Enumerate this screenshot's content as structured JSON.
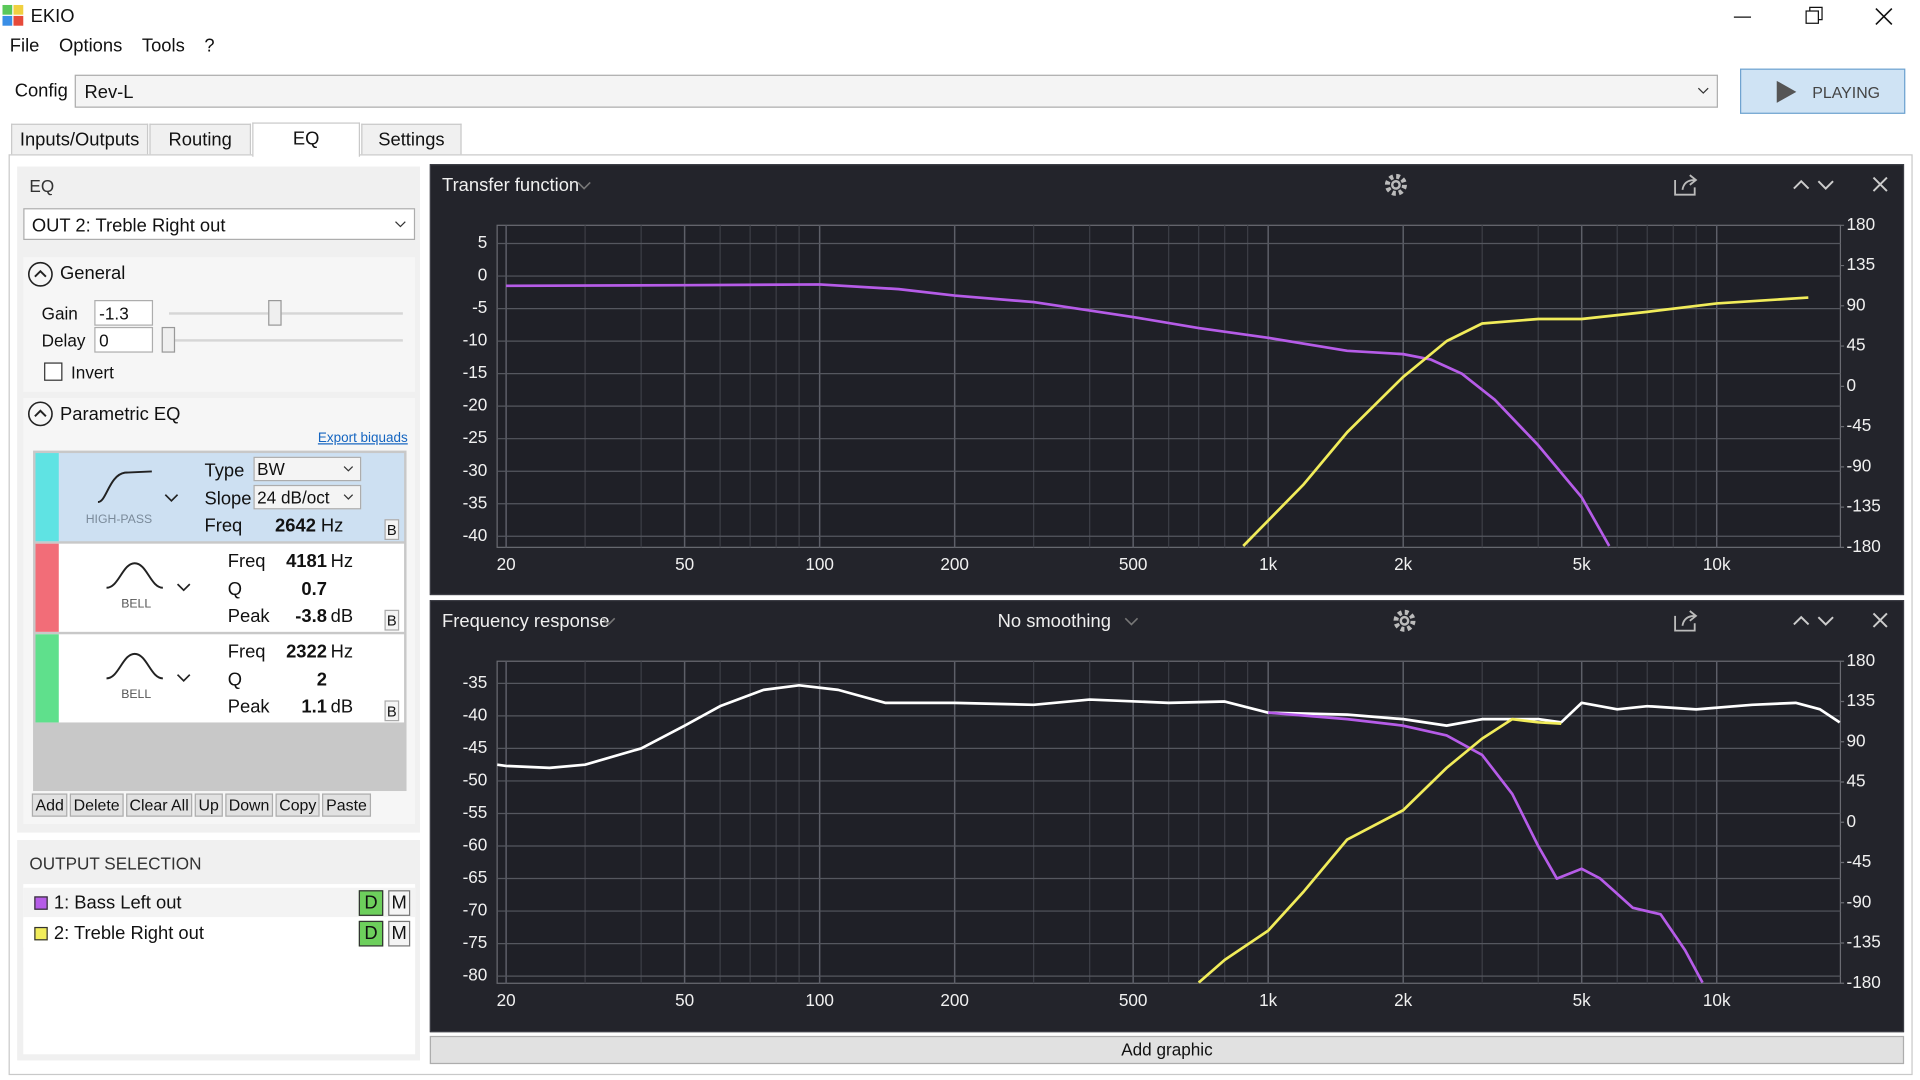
{
  "window": {
    "title": "EKIO"
  },
  "menu": [
    "File",
    "Options",
    "Tools",
    "?"
  ],
  "config": {
    "label": "Config",
    "value": "Rev-L",
    "play_button": "PLAYING"
  },
  "tabs": [
    "Inputs/Outputs",
    "Routing",
    "EQ",
    "Settings"
  ],
  "active_tab": 2,
  "eq_panel": {
    "heading": "EQ",
    "output": "OUT 2: Treble Right out",
    "general": {
      "heading": "General",
      "gain_label": "Gain",
      "gain": -1.3,
      "delay_label": "Delay",
      "delay": 0,
      "invert_label": "Invert"
    },
    "parametric": {
      "heading": "Parametric EQ",
      "export": "Export biquads",
      "selected_filter": 0,
      "filters": [
        {
          "color": "#5fe3e3",
          "kind": "HIGH-PASS",
          "button": "B",
          "fields": [
            {
              "label": "Type",
              "value": "BW",
              "dropdown": true
            },
            {
              "label": "Slope",
              "value": "24 dB/oct",
              "dropdown": true
            },
            {
              "label": "Freq",
              "value": 2642,
              "unit": "Hz"
            }
          ]
        },
        {
          "color": "#f26d78",
          "kind": "BELL",
          "button": "B",
          "fields": [
            {
              "label": "Freq",
              "value": 4181,
              "unit": "Hz"
            },
            {
              "label": "Q",
              "value": 0.7
            },
            {
              "label": "Peak",
              "value": -3.8,
              "unit": "dB"
            }
          ]
        },
        {
          "color": "#5fe08c",
          "kind": "BELL",
          "button": "B",
          "fields": [
            {
              "label": "Freq",
              "value": 2322,
              "unit": "Hz"
            },
            {
              "label": "Q",
              "value": 2
            },
            {
              "label": "Peak",
              "value": 1.1,
              "unit": "dB"
            }
          ]
        }
      ],
      "buttons": [
        "Add",
        "Delete",
        "Clear All",
        "Up",
        "Down",
        "Copy",
        "Paste"
      ]
    }
  },
  "output_selection": {
    "heading": "OUTPUT SELECTION",
    "items": [
      {
        "name": "1: Bass Left out",
        "color": "#b65ce8",
        "d": "D",
        "m": "M"
      },
      {
        "name": "2: Treble Right out",
        "color": "#f1ec5a",
        "d": "D",
        "m": "M"
      }
    ]
  },
  "plots": [
    {
      "title": "Transfer function",
      "xscale": "log",
      "xlim": [
        19.1,
        18870
      ],
      "xticks": [
        20,
        50,
        100,
        200,
        500,
        {
          "value": 1000,
          "label": "1k"
        },
        {
          "value": 2000,
          "label": "2k"
        },
        {
          "value": 5000,
          "label": "5k"
        },
        {
          "value": 10000,
          "label": "10k"
        }
      ],
      "ylim": [
        -41.7,
        7.8
      ],
      "yticks": [
        5,
        0,
        -5,
        -10,
        -15,
        -20,
        -25,
        -30,
        -35,
        -40
      ],
      "y2lim": [
        -180,
        180
      ],
      "y2ticks": [
        180,
        135,
        90,
        45,
        0,
        -45,
        -90,
        -135,
        -180
      ],
      "series": [
        {
          "color": "#b65ce8",
          "x": [
            20,
            50,
            100,
            150,
            200,
            300,
            500,
            700,
            1000,
            1500,
            2000,
            2300,
            2700,
            3200,
            4000,
            5000,
            5760
          ],
          "values": [
            -1.5,
            -1.4,
            -1.3,
            -2,
            -3,
            -4,
            -6.3,
            -8,
            -9.5,
            -11.5,
            -12,
            -12.8,
            -15,
            -19,
            -26,
            -34,
            -41.5
          ]
        },
        {
          "color": "#f1ec5a",
          "x": [
            880,
            1200,
            1500,
            2000,
            2500,
            3000,
            4000,
            5000,
            7000,
            10000,
            16000
          ],
          "values": [
            -41.5,
            -32,
            -24,
            -15.5,
            -10,
            -7.3,
            -6.6,
            -6.6,
            -5.5,
            -4.2,
            -3.3
          ]
        }
      ]
    },
    {
      "title": "Frequency response",
      "smoothing": "No smoothing",
      "xscale": "log",
      "xlim": [
        19.1,
        18870
      ],
      "xticks": [
        20,
        50,
        100,
        200,
        500,
        {
          "value": 1000,
          "label": "1k"
        },
        {
          "value": 2000,
          "label": "2k"
        },
        {
          "value": 5000,
          "label": "5k"
        },
        {
          "value": 10000,
          "label": "10k"
        }
      ],
      "ylim": [
        -81.1,
        -31.6
      ],
      "yticks": [
        -35,
        -40,
        -45,
        -50,
        -55,
        -60,
        -65,
        -70,
        -75,
        -80
      ],
      "y2lim": [
        -180,
        180
      ],
      "y2ticks": [
        180,
        135,
        90,
        45,
        0,
        -45,
        -90,
        -135,
        -180
      ],
      "series": [
        {
          "color": "#ffffff",
          "x": [
            19.1,
            20,
            25,
            30,
            40,
            50,
            60,
            75,
            90,
            110,
            140,
            200,
            300,
            400,
            600,
            800,
            1000,
            1500,
            2000,
            2500,
            3000,
            4000,
            4500,
            5000,
            6000,
            7000,
            9000,
            12000,
            15000,
            17000,
            18800
          ],
          "values": [
            -47.5,
            -47.7,
            -48,
            -47.5,
            -45,
            -41.5,
            -38.5,
            -36,
            -35.3,
            -36,
            -38,
            -38,
            -38.3,
            -37.5,
            -38,
            -37.8,
            -39.5,
            -39.8,
            -40.5,
            -41.5,
            -40.5,
            -40.5,
            -41,
            -38,
            -39,
            -38.5,
            -39,
            -38.3,
            -38,
            -39,
            -41
          ]
        },
        {
          "color": "#b65ce8",
          "x": [
            1000,
            1500,
            2000,
            2500,
            3000,
            3500,
            4000,
            4400,
            5000,
            5500,
            6500,
            7500,
            8500,
            9300
          ],
          "values": [
            -39.5,
            -40.5,
            -41.5,
            -43,
            -46,
            -52,
            -60,
            -65,
            -63.5,
            -65,
            -69.5,
            -70.5,
            -76,
            -81
          ]
        },
        {
          "color": "#f1ec5a",
          "x": [
            700,
            800,
            1000,
            1200,
            1500,
            2000,
            2500,
            3000,
            3500,
            4000,
            4500
          ],
          "values": [
            -81,
            -77.5,
            -73,
            -67,
            -59,
            -54.5,
            -48,
            -43.5,
            -40.5,
            -41,
            -41.2
          ]
        }
      ]
    }
  ],
  "add_graphic": "Add graphic"
}
